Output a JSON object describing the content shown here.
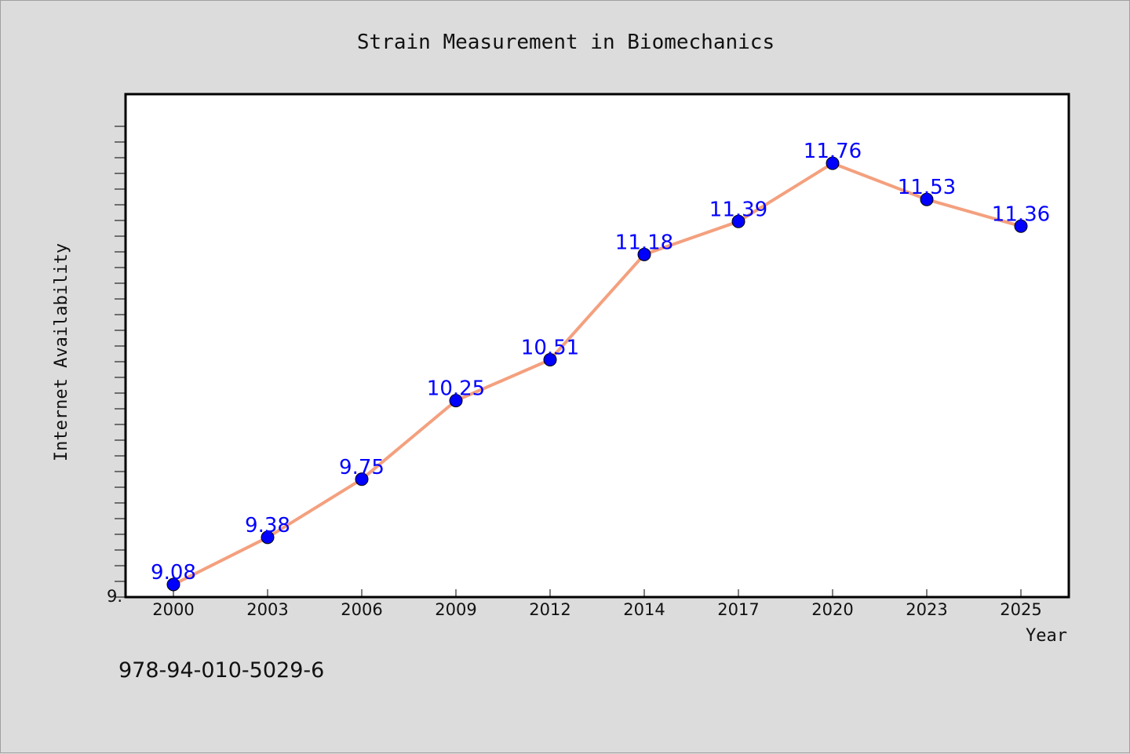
{
  "chart_data": {
    "type": "line",
    "title": "Strain Measurement in Biomechanics",
    "xlabel": "Year",
    "ylabel": "Internet Availability",
    "categories": [
      "2000",
      "2003",
      "2006",
      "2009",
      "2012",
      "2014",
      "2017",
      "2020",
      "2023",
      "2025"
    ],
    "values": [
      9.08,
      9.38,
      9.75,
      10.25,
      10.51,
      11.18,
      11.39,
      11.76,
      11.53,
      11.36
    ],
    "data_labels": [
      "9.08",
      "9.38",
      "9.75",
      "10.25",
      "10.51",
      "11.18",
      "11.39",
      "11.76",
      "11.53",
      "11.36"
    ],
    "y_tick_label": "9.",
    "ylim": [
      9.0,
      12.2
    ],
    "grid": false,
    "legend": "none",
    "colors": {
      "line": "#f4a07e",
      "marker": "#0000ff",
      "data_label": "#0000ff",
      "plot_bg": "#ffffff",
      "page_bg": "#dcdcdc"
    }
  },
  "footer": {
    "code": "978-94-010-5029-6"
  }
}
